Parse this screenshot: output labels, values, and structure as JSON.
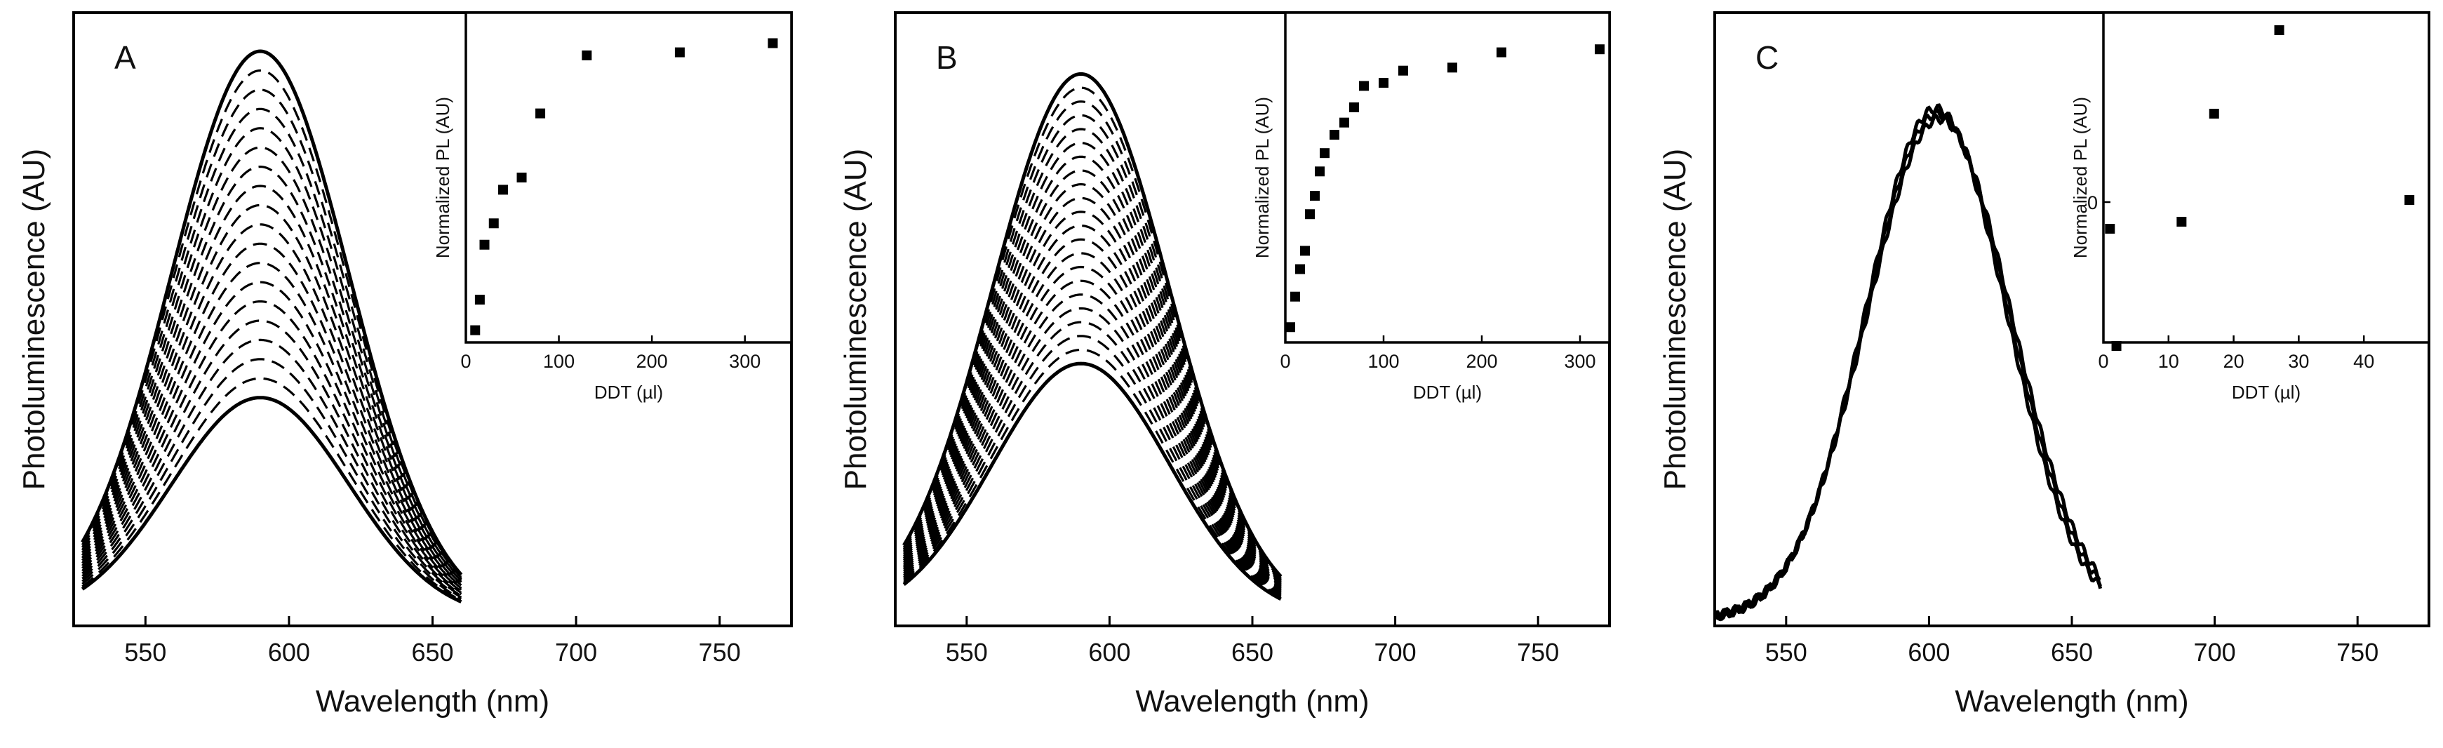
{
  "figure": {
    "panels": [
      "A",
      "B",
      "C"
    ]
  },
  "chart_data": [
    {
      "type": "line",
      "panel_label": "A",
      "xlabel": "Wavelength (nm)",
      "ylabel": "Photoluminescence (AU)",
      "xlim": [
        525,
        775
      ],
      "xticks": [
        550,
        600,
        650,
        700,
        750
      ],
      "ylim": [
        0,
        1.08
      ],
      "peak_nm": 590,
      "width_nm": 31,
      "curve_range": [
        528,
        660
      ],
      "n_curves": 19,
      "peak_min": 0.39,
      "peak_max": 1.0,
      "inset": {
        "type": "scatter",
        "xlabel": "DDT (µl)",
        "ylabel": "Normalized PL (AU)",
        "xlim": [
          0,
          350
        ],
        "xticks": [
          0,
          100,
          200,
          300
        ],
        "ylim": [
          0,
          1.08
        ],
        "x": [
          10,
          15,
          20,
          30,
          40,
          60,
          80,
          130,
          230,
          330
        ],
        "y": [
          0.04,
          0.14,
          0.32,
          0.39,
          0.5,
          0.54,
          0.75,
          0.94,
          0.95,
          0.98
        ]
      }
    },
    {
      "type": "line",
      "panel_label": "B",
      "xlabel": "Wavelength (nm)",
      "ylabel": "Photoluminescence (AU)",
      "xlim": [
        525,
        775
      ],
      "xticks": [
        550,
        600,
        650,
        700,
        750
      ],
      "ylim": [
        0,
        1.08
      ],
      "peak_nm": 590,
      "width_nm": 31,
      "curve_range": [
        528,
        660
      ],
      "n_curves": 22,
      "peak_min": 0.45,
      "peak_max": 0.96,
      "inset": {
        "type": "scatter",
        "xlabel": "DDT (µl)",
        "ylabel": "Normalized PL (AU)",
        "xlim": [
          0,
          330
        ],
        "xticks": [
          0,
          100,
          200,
          300
        ],
        "ylim": [
          0,
          1.08
        ],
        "x": [
          5,
          10,
          15,
          20,
          25,
          30,
          35,
          40,
          50,
          60,
          70,
          80,
          100,
          120,
          170,
          220,
          320
        ],
        "y": [
          0.05,
          0.15,
          0.24,
          0.3,
          0.42,
          0.48,
          0.56,
          0.62,
          0.68,
          0.72,
          0.77,
          0.84,
          0.85,
          0.89,
          0.9,
          0.95,
          0.96
        ]
      }
    },
    {
      "type": "line",
      "panel_label": "C",
      "xlabel": "Wavelength (nm)",
      "ylabel": "Photoluminescence (AU)",
      "xlim": [
        525,
        775
      ],
      "xticks": [
        550,
        600,
        650,
        700,
        750
      ],
      "ylim": [
        0,
        1.2
      ],
      "peak_nm": 603,
      "width_nm": 25,
      "curve_range": [
        525,
        660
      ],
      "n_curves": 3,
      "peak_min": 1.0,
      "peak_max": 1.0,
      "inset": {
        "type": "scatter",
        "xlabel": "DDT (µl)",
        "ylabel": "Normalized PL (AU)",
        "xlim": [
          0,
          50
        ],
        "xticks": [
          0,
          10,
          20,
          30,
          40
        ],
        "ytick_labels": [
          {
            "value": 0,
            "label": "0"
          }
        ],
        "ylim": [
          -0.02,
          0.027
        ],
        "x": [
          1,
          2,
          12,
          17,
          27,
          47
        ],
        "y": [
          -0.0038,
          -0.0205,
          -0.0028,
          0.0126,
          0.0245,
          0.0003
        ]
      }
    }
  ]
}
